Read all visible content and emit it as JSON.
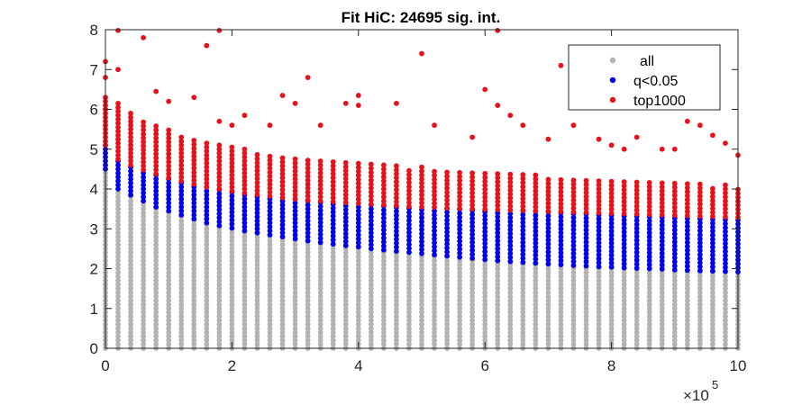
{
  "chart_data": {
    "type": "scatter",
    "title": "Fit HiC: 24695 sig. int.",
    "xlabel": "",
    "ylabel": "",
    "x_exponent_label": "×10",
    "x_exponent_power": "5",
    "xlim": [
      0,
      1000000
    ],
    "ylim": [
      0,
      8
    ],
    "x_ticks": [
      0,
      200000,
      400000,
      600000,
      800000,
      1000000
    ],
    "x_tick_labels": [
      "0",
      "2",
      "4",
      "6",
      "8",
      "10"
    ],
    "y_ticks": [
      0,
      1,
      2,
      3,
      4,
      5,
      6,
      7,
      8
    ],
    "y_tick_labels": [
      "0",
      "1",
      "2",
      "3",
      "4",
      "5",
      "6",
      "7",
      "8"
    ],
    "grid": false,
    "legend_position": "top-right",
    "bin_x": [
      0,
      20000,
      40000,
      60000,
      80000,
      100000,
      120000,
      140000,
      160000,
      180000,
      200000,
      220000,
      240000,
      260000,
      280000,
      300000,
      320000,
      340000,
      360000,
      380000,
      400000,
      420000,
      440000,
      460000,
      480000,
      500000,
      520000,
      540000,
      560000,
      580000,
      600000,
      620000,
      640000,
      660000,
      680000,
      700000,
      720000,
      740000,
      760000,
      780000,
      800000,
      820000,
      840000,
      860000,
      880000,
      900000,
      920000,
      940000,
      960000,
      980000,
      1000000
    ],
    "series": [
      {
        "name": "all",
        "color": "#b3b3b3",
        "upper": [
          4.5,
          4.0,
          3.85,
          3.7,
          3.55,
          3.45,
          3.35,
          3.25,
          3.15,
          3.08,
          3.02,
          2.95,
          2.9,
          2.85,
          2.8,
          2.75,
          2.7,
          2.66,
          2.62,
          2.58,
          2.55,
          2.5,
          2.47,
          2.44,
          2.41,
          2.38,
          2.35,
          2.32,
          2.29,
          2.26,
          2.23,
          2.2,
          2.18,
          2.16,
          2.14,
          2.12,
          2.1,
          2.08,
          2.07,
          2.05,
          2.04,
          2.02,
          2.01,
          2.0,
          1.99,
          1.97,
          1.96,
          1.95,
          1.94,
          1.93,
          1.92
        ]
      },
      {
        "name": "q<0.05",
        "color": "#0000ee",
        "upper": [
          5.1,
          4.75,
          4.6,
          4.48,
          4.38,
          4.28,
          4.2,
          4.12,
          4.05,
          4.0,
          3.95,
          3.9,
          3.86,
          3.82,
          3.78,
          3.75,
          3.72,
          3.7,
          3.68,
          3.66,
          3.64,
          3.62,
          3.6,
          3.58,
          3.56,
          3.55,
          3.54,
          3.52,
          3.51,
          3.5,
          3.49,
          3.48,
          3.47,
          3.46,
          3.45,
          3.44,
          3.43,
          3.42,
          3.41,
          3.4,
          3.39,
          3.38,
          3.37,
          3.36,
          3.35,
          3.34,
          3.33,
          3.32,
          3.31,
          3.3,
          3.29
        ]
      },
      {
        "name": "top1000",
        "color": "#e8101a",
        "upper": [
          6.3,
          6.15,
          5.9,
          5.7,
          5.6,
          5.5,
          5.35,
          5.3,
          5.2,
          5.1,
          5.05,
          5.0,
          4.95,
          4.9,
          4.85,
          4.8,
          4.78,
          4.75,
          4.7,
          4.68,
          4.65,
          4.62,
          4.6,
          4.58,
          4.55,
          4.55,
          4.52,
          4.5,
          4.48,
          4.45,
          4.45,
          4.4,
          4.4,
          4.38,
          4.35,
          4.32,
          4.3,
          4.3,
          4.28,
          4.25,
          4.25,
          4.22,
          4.2,
          4.2,
          4.18,
          4.15,
          4.15,
          4.12,
          4.1,
          4.1,
          4.08
        ],
        "outliers": [
          [
            0,
            7.2
          ],
          [
            0,
            6.8
          ],
          [
            0,
            6.0
          ],
          [
            20000,
            7.98
          ],
          [
            20000,
            7.0
          ],
          [
            60000,
            7.8
          ],
          [
            80000,
            6.45
          ],
          [
            100000,
            6.2
          ],
          [
            140000,
            6.3
          ],
          [
            160000,
            7.6
          ],
          [
            180000,
            7.98
          ],
          [
            180000,
            5.7
          ],
          [
            200000,
            5.6
          ],
          [
            220000,
            5.85
          ],
          [
            260000,
            5.6
          ],
          [
            280000,
            6.35
          ],
          [
            300000,
            6.15
          ],
          [
            320000,
            6.8
          ],
          [
            340000,
            5.6
          ],
          [
            380000,
            6.15
          ],
          [
            400000,
            6.35
          ],
          [
            400000,
            6.1
          ],
          [
            460000,
            6.15
          ],
          [
            500000,
            7.4
          ],
          [
            520000,
            5.6
          ],
          [
            580000,
            5.3
          ],
          [
            600000,
            6.5
          ],
          [
            620000,
            7.98
          ],
          [
            620000,
            6.1
          ],
          [
            640000,
            5.85
          ],
          [
            660000,
            5.6
          ],
          [
            700000,
            5.25
          ],
          [
            720000,
            7.1
          ],
          [
            740000,
            5.6
          ],
          [
            780000,
            5.25
          ],
          [
            800000,
            5.1
          ],
          [
            820000,
            5.0
          ],
          [
            840000,
            5.3
          ],
          [
            880000,
            5.0
          ],
          [
            900000,
            5.0
          ],
          [
            920000,
            5.7
          ],
          [
            940000,
            5.6
          ],
          [
            960000,
            5.35
          ],
          [
            980000,
            5.15
          ],
          [
            1000000,
            4.85
          ]
        ]
      }
    ]
  }
}
